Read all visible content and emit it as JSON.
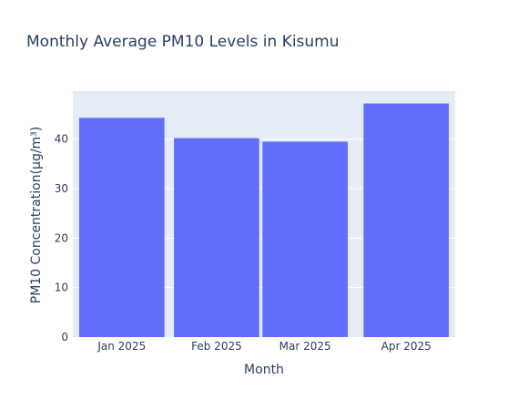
{
  "chart_data": {
    "type": "bar",
    "title": "Monthly Average PM10 Levels in Kisumu",
    "xlabel": "Month",
    "ylabel": "PM10 Concentration(μg/m³)",
    "categories": [
      "Jan 2025",
      "Feb 2025",
      "Mar 2025",
      "Apr 2025"
    ],
    "x_dates": [
      "2025-01-15",
      "2025-02-14",
      "2025-03-14",
      "2025-04-15"
    ],
    "values": [
      44.3,
      40.2,
      39.5,
      47.2
    ],
    "ylim": [
      0,
      49.7
    ],
    "yticks": [
      0,
      10,
      20,
      30,
      40
    ],
    "grid": true,
    "legend": "none",
    "colors": {
      "bar": "#636efa",
      "plot_bg": "#e5ecf6",
      "grid": "#ffffff",
      "text": "#2a3f5f"
    }
  }
}
